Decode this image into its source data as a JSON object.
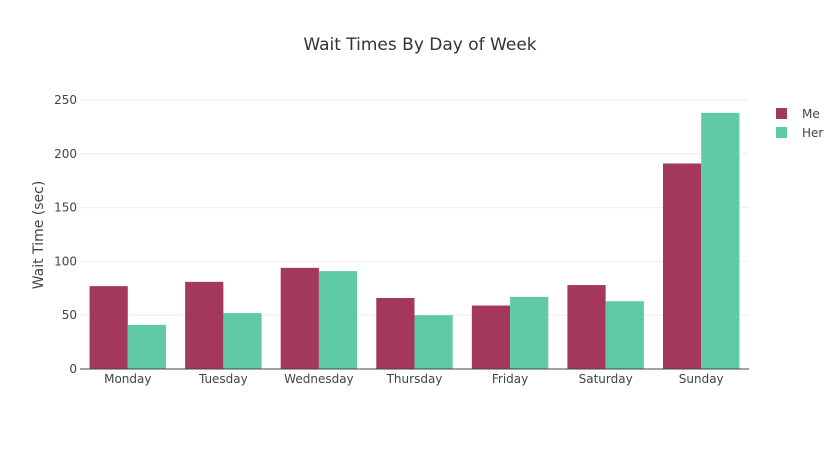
{
  "chart_data": {
    "type": "bar",
    "title": "Wait Times By Day of Week",
    "xlabel": "",
    "ylabel": "Wait Time (sec)",
    "categories": [
      "Monday",
      "Tuesday",
      "Wednesday",
      "Thursday",
      "Friday",
      "Saturday",
      "Sunday"
    ],
    "series": [
      {
        "name": "Me",
        "color": "#a4375e",
        "values": [
          77,
          81,
          94,
          66,
          59,
          78,
          191
        ]
      },
      {
        "name": "Her",
        "color": "#5fcaa5",
        "values": [
          41,
          52,
          91,
          50,
          67,
          63,
          238
        ]
      }
    ],
    "ylim": [
      0,
      250
    ],
    "yticks": [
      0,
      50,
      100,
      150,
      200,
      250
    ],
    "grid": true,
    "legend_position": "top-right"
  }
}
